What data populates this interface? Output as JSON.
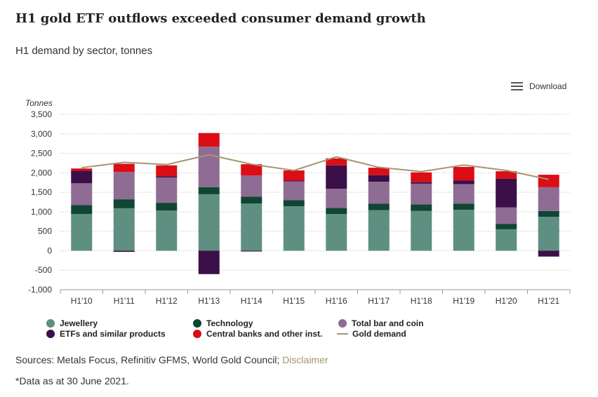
{
  "header": {
    "title": "H1 gold ETF outflows exceeded consumer demand growth",
    "subtitle": "H1 demand by sector, tonnes"
  },
  "toolbar": {
    "download_label": "Download",
    "download_icon": "menu-icon"
  },
  "footer": {
    "sources_text": "Sources: Metals Focus, Refinitiv GFMS, World Gold Council;",
    "disclaimer_label": "Disclaimer",
    "footnote": "*Data as at 30 June 2021."
  },
  "chart_data": {
    "type": "bar",
    "stacked": true,
    "ylabel": "Tonnes",
    "ylim": [
      -1000,
      3500
    ],
    "yticks": [
      3500,
      3000,
      2500,
      2000,
      1500,
      1000,
      500,
      0,
      -500,
      -1000
    ],
    "ytick_labels": [
      "3,500",
      "3,000",
      "2,500",
      "2,000",
      "1,500",
      "1,000",
      "500",
      "0",
      "-500",
      "-1,000"
    ],
    "categories": [
      "H1'10",
      "H1'11",
      "H1'12",
      "H1'13",
      "H1'14",
      "H1'15",
      "H1'16",
      "H1'17",
      "H1'18",
      "H1'19",
      "H1'20",
      "H1'21"
    ],
    "series": [
      {
        "name": "Jewellery",
        "color": "#5f8f80",
        "values": [
          940,
          1090,
          1030,
          1450,
          1210,
          1140,
          940,
          1040,
          1020,
          1050,
          550,
          870
        ]
      },
      {
        "name": "Technology",
        "color": "#0f4633",
        "values": [
          230,
          230,
          200,
          180,
          180,
          160,
          160,
          170,
          170,
          160,
          140,
          150
        ]
      },
      {
        "name": "Total bar and coin",
        "color": "#8e6c93",
        "values": [
          560,
          700,
          650,
          1040,
          540,
          480,
          490,
          560,
          530,
          500,
          420,
          610
        ]
      },
      {
        "name": "ETFs and similar products",
        "color": "#3b0f48",
        "values": [
          320,
          -30,
          30,
          -600,
          -20,
          20,
          600,
          170,
          40,
          90,
          740,
          -150
        ]
      },
      {
        "name": "Central banks and other inst.",
        "color": "#db0d15",
        "values": [
          60,
          210,
          280,
          350,
          290,
          260,
          180,
          190,
          250,
          350,
          190,
          320
        ]
      }
    ],
    "line_series": {
      "name": "Gold demand",
      "color": "#a89470",
      "values": [
        2130,
        2270,
        2210,
        2460,
        2220,
        2060,
        2410,
        2140,
        2030,
        2200,
        2060,
        1830
      ]
    },
    "grid": true,
    "legend_position": "bottom"
  }
}
